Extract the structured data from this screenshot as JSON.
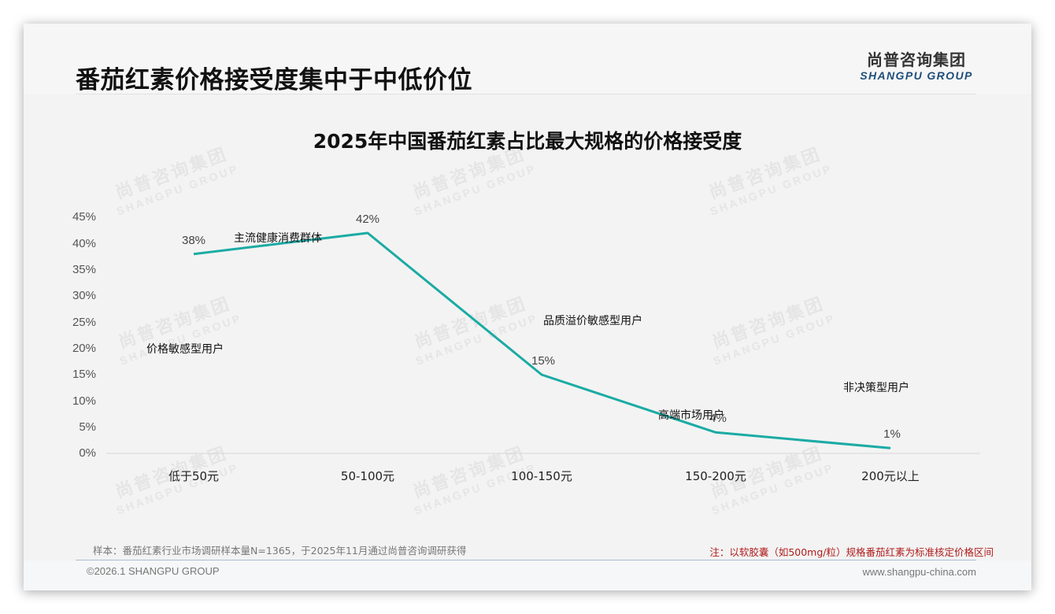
{
  "header": {
    "title": "番茄红素价格接受度集中于中低价位",
    "logo_cn": "尚普咨询集团",
    "logo_en": "SHANGPU GROUP"
  },
  "watermark": {
    "cn": "尚普咨询集团",
    "en": "SHANGPU GROUP"
  },
  "chart_data": {
    "type": "line",
    "title": "2025年中国番茄红素占比最大规格的价格接受度",
    "categories": [
      "低于50元",
      "50-100元",
      "100-150元",
      "150-200元",
      "200元以上"
    ],
    "values": [
      38,
      42,
      15,
      4,
      1
    ],
    "value_labels": [
      "38%",
      "42%",
      "15%",
      "4%",
      "1%"
    ],
    "series": [
      {
        "name": "价格接受度",
        "values": [
          38,
          42,
          15,
          4,
          1
        ],
        "color": "#1aaba4"
      }
    ],
    "annotations": [
      {
        "text": "价格敏感型用户",
        "category": "低于50元"
      },
      {
        "text": "主流健康消费群体",
        "category": "50-100元"
      },
      {
        "text": "品质溢价敏感型用户",
        "category": "100-150元"
      },
      {
        "text": "高端市场用户",
        "category": "150-200元"
      },
      {
        "text": "非决策型用户",
        "category": "200元以上"
      }
    ],
    "yticks": [
      "0%",
      "5%",
      "10%",
      "15%",
      "20%",
      "25%",
      "30%",
      "35%",
      "40%",
      "45%"
    ],
    "ylim": [
      0,
      45
    ],
    "xlabel": "",
    "ylabel": "",
    "grid": false,
    "legend": "none"
  },
  "footer": {
    "source": "样本：番茄红素行业市场调研样本量N=1365，于2025年11月通过尚普咨询调研获得",
    "note": "注：以软胶囊（如500mg/粒）规格番茄红素为标准核定价格区间",
    "copyright": "©2026.1 SHANGPU GROUP",
    "website": "www.shangpu-china.com"
  },
  "colors": {
    "line": "#1aaba4",
    "note": "#b01c1c",
    "logo_en": "#1f4e79"
  }
}
